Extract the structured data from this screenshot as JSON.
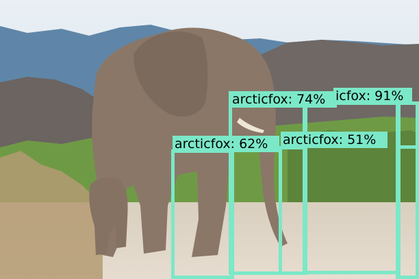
{
  "image": {
    "description_none": "",
    "colors": {
      "sky": "#dfe9f1",
      "mountains": "#5f86a8",
      "rock_hill": "#6e6764",
      "elephant": "#8a7768",
      "vegetation": "#6f9a45",
      "dry_grass": "#b49b72",
      "sand": "#ddd3c3",
      "box": "#7be8c7"
    }
  },
  "detections": [
    {
      "id": "d1",
      "label": "arcticfox: 74%"
    },
    {
      "id": "d2",
      "label": "icfox: 91%"
    },
    {
      "id": "d3",
      "label": "arcticfox: 62%"
    },
    {
      "id": "d4",
      "label": "arcticfox: 51%"
    }
  ]
}
